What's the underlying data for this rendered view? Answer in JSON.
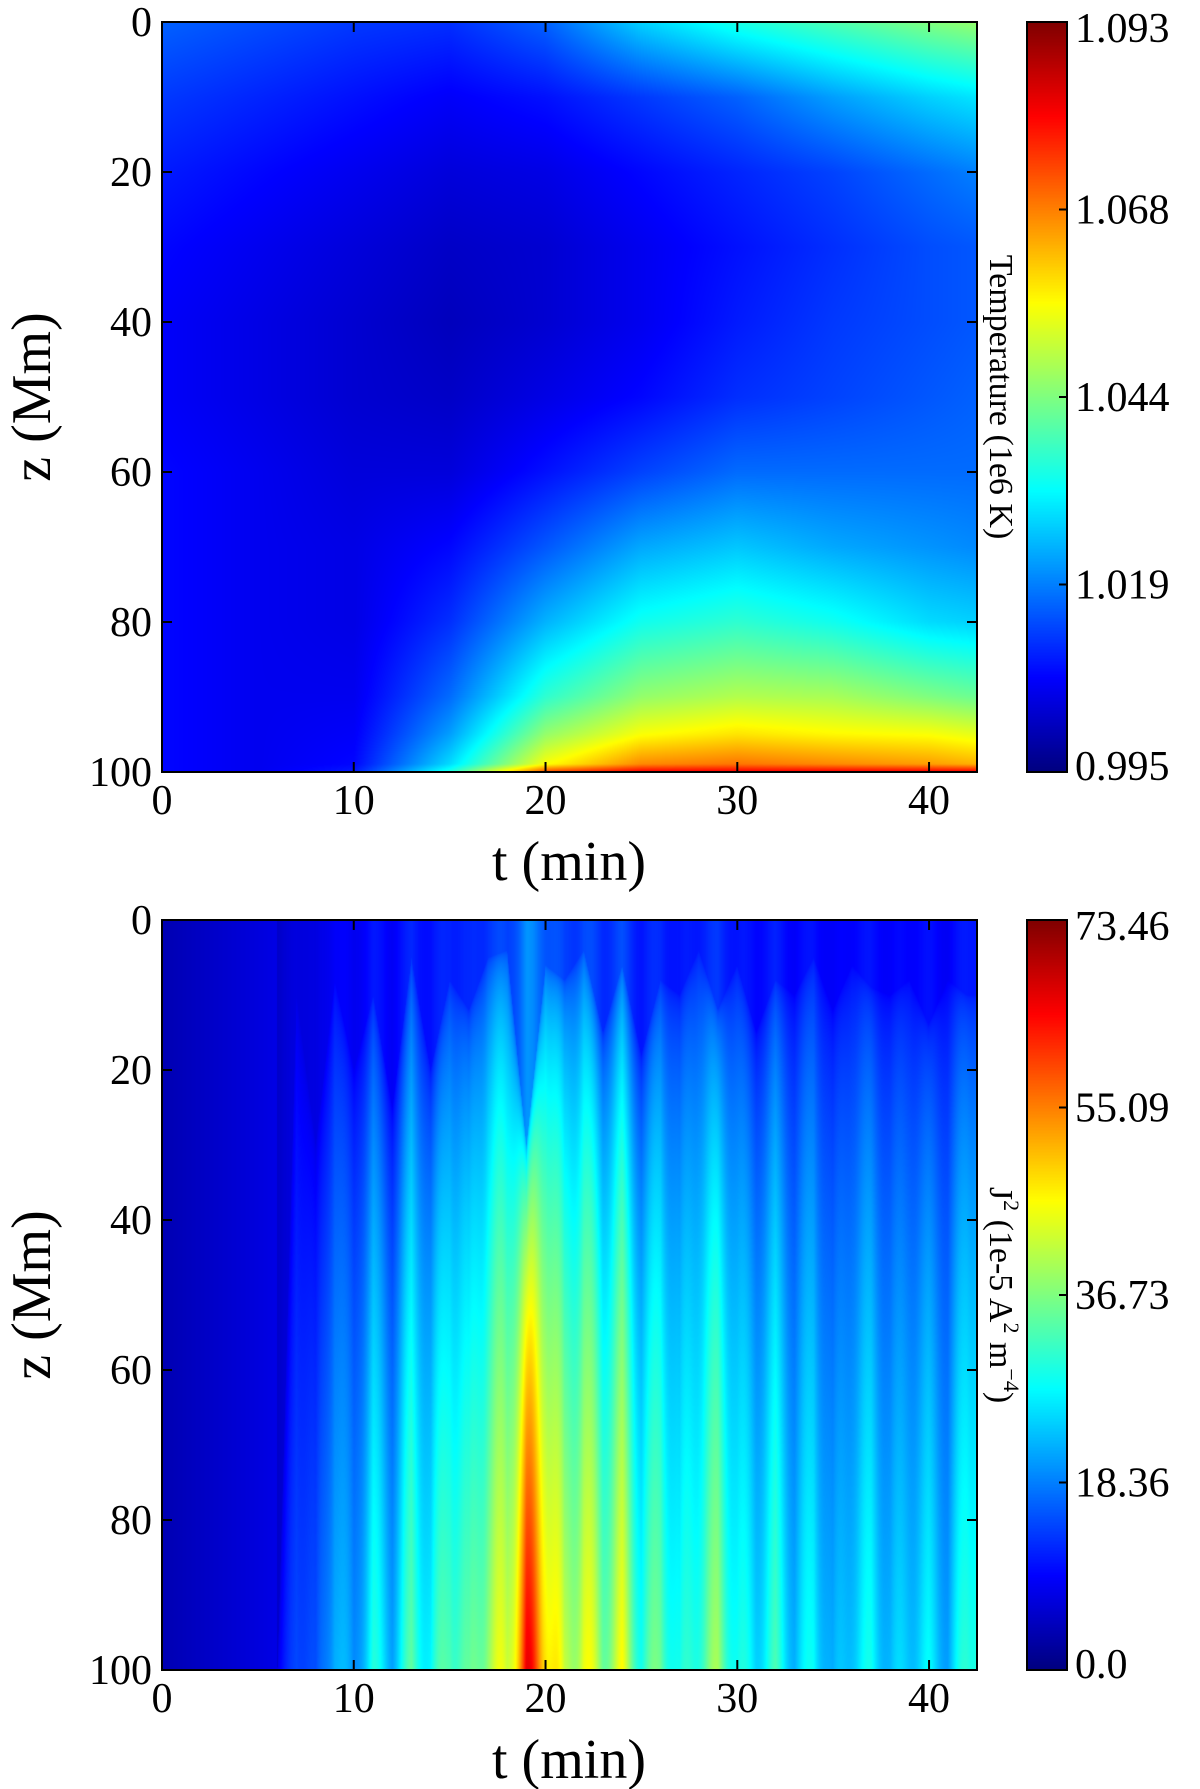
{
  "chart_data": [
    {
      "type": "heatmap",
      "xlabel": "t (min)",
      "ylabel": "z (Mm)",
      "xlim": [
        0,
        42.5
      ],
      "ylim": [
        0,
        100
      ],
      "y_inverted": true,
      "xticks": [
        0,
        10,
        20,
        30,
        40
      ],
      "xtick_labels": [
        "0",
        "10",
        "20",
        "30",
        "40"
      ],
      "yticks": [
        0,
        20,
        40,
        60,
        80,
        100
      ],
      "ytick_labels": [
        "0",
        "20",
        "40",
        "60",
        "80",
        "100"
      ],
      "colormap": "jet",
      "colorbar": {
        "label": "Temperature (1e6 K)",
        "min": 0.995,
        "max": 1.093,
        "tick_labels": [
          "0.995",
          "1.019",
          "1.044",
          "1.068",
          "1.093"
        ]
      },
      "field": {
        "description_values": "normalized colormap level 0-1 sampled on grid of t (columns) x z (rows)",
        "t": [
          0,
          5,
          10,
          15,
          20,
          25,
          30,
          35,
          40,
          42.5
        ],
        "z": [
          0,
          10,
          20,
          30,
          40,
          50,
          60,
          70,
          80,
          90,
          95,
          99,
          100
        ],
        "values": [
          [
            0.22,
            0.2,
            0.18,
            0.17,
            0.22,
            0.33,
            0.4,
            0.45,
            0.5,
            0.52
          ],
          [
            0.18,
            0.16,
            0.14,
            0.12,
            0.14,
            0.18,
            0.22,
            0.28,
            0.33,
            0.35
          ],
          [
            0.15,
            0.13,
            0.11,
            0.09,
            0.1,
            0.13,
            0.16,
            0.19,
            0.23,
            0.25
          ],
          [
            0.13,
            0.11,
            0.09,
            0.07,
            0.08,
            0.11,
            0.14,
            0.17,
            0.2,
            0.21
          ],
          [
            0.12,
            0.1,
            0.08,
            0.06,
            0.08,
            0.11,
            0.15,
            0.18,
            0.2,
            0.21
          ],
          [
            0.12,
            0.1,
            0.08,
            0.07,
            0.1,
            0.13,
            0.17,
            0.19,
            0.21,
            0.22
          ],
          [
            0.13,
            0.11,
            0.09,
            0.09,
            0.14,
            0.19,
            0.23,
            0.23,
            0.23,
            0.23
          ],
          [
            0.13,
            0.11,
            0.1,
            0.13,
            0.21,
            0.29,
            0.32,
            0.29,
            0.27,
            0.26
          ],
          [
            0.13,
            0.11,
            0.1,
            0.17,
            0.3,
            0.39,
            0.42,
            0.39,
            0.34,
            0.33
          ],
          [
            0.13,
            0.11,
            0.11,
            0.23,
            0.42,
            0.52,
            0.55,
            0.54,
            0.5,
            0.48
          ],
          [
            0.13,
            0.11,
            0.12,
            0.28,
            0.52,
            0.62,
            0.65,
            0.63,
            0.62,
            0.6
          ],
          [
            0.13,
            0.11,
            0.13,
            0.34,
            0.62,
            0.74,
            0.76,
            0.74,
            0.72,
            0.7
          ],
          [
            0.13,
            0.11,
            0.15,
            0.4,
            0.8,
            0.88,
            0.88,
            0.88,
            0.88,
            0.88
          ]
        ]
      }
    },
    {
      "type": "heatmap",
      "xlabel": "t (min)",
      "ylabel": "z (Mm)",
      "xlim": [
        0,
        42.5
      ],
      "ylim": [
        0,
        100
      ],
      "y_inverted": true,
      "xticks": [
        0,
        10,
        20,
        30,
        40
      ],
      "xtick_labels": [
        "0",
        "10",
        "20",
        "30",
        "40"
      ],
      "yticks": [
        0,
        20,
        40,
        60,
        80,
        100
      ],
      "ytick_labels": [
        "0",
        "20",
        "40",
        "60",
        "80",
        "100"
      ],
      "colormap": "jet",
      "colorbar": {
        "label_main": "J",
        "label_sup": "2",
        "label_rest": " (1e-5 A",
        "label_sup2": "2",
        "label_rest2": " m",
        "label_sup3": "−4",
        "label_end": ")",
        "min": 0.0,
        "max": 73.46,
        "tick_labels": [
          "0.0",
          "18.36",
          "36.73",
          "55.09",
          "73.46"
        ]
      },
      "field": {
        "description_values": "striped field: normalized level depends on t-column profile times z-attenuation",
        "t_columns": [
          0,
          1,
          2,
          3,
          4,
          5,
          6,
          7,
          8,
          9,
          10,
          11,
          12,
          13,
          14,
          15,
          16,
          17,
          18,
          19,
          20,
          21,
          22,
          23,
          24,
          25,
          26,
          27,
          28,
          29,
          30,
          31,
          32,
          33,
          34,
          35,
          36,
          37,
          38,
          39,
          40,
          41,
          42,
          42.5
        ],
        "column_peak": [
          0.05,
          0.06,
          0.08,
          0.09,
          0.12,
          0.15,
          0.11,
          0.22,
          0.2,
          0.34,
          0.28,
          0.42,
          0.33,
          0.48,
          0.4,
          0.52,
          0.47,
          0.6,
          0.62,
          0.92,
          0.78,
          0.58,
          0.66,
          0.55,
          0.63,
          0.45,
          0.52,
          0.4,
          0.48,
          0.55,
          0.42,
          0.38,
          0.45,
          0.34,
          0.41,
          0.3,
          0.37,
          0.4,
          0.33,
          0.36,
          0.38,
          0.32,
          0.45,
          0.48
        ],
        "column_reach_z": [
          100,
          100,
          100,
          100,
          100,
          100,
          100,
          10,
          30,
          8,
          20,
          10,
          25,
          5,
          20,
          8,
          12,
          5,
          4,
          30,
          6,
          8,
          4,
          15,
          6,
          18,
          8,
          10,
          4,
          12,
          6,
          15,
          8,
          10,
          5,
          12,
          6,
          9,
          10,
          8,
          14,
          8,
          10,
          10
        ]
      }
    }
  ]
}
